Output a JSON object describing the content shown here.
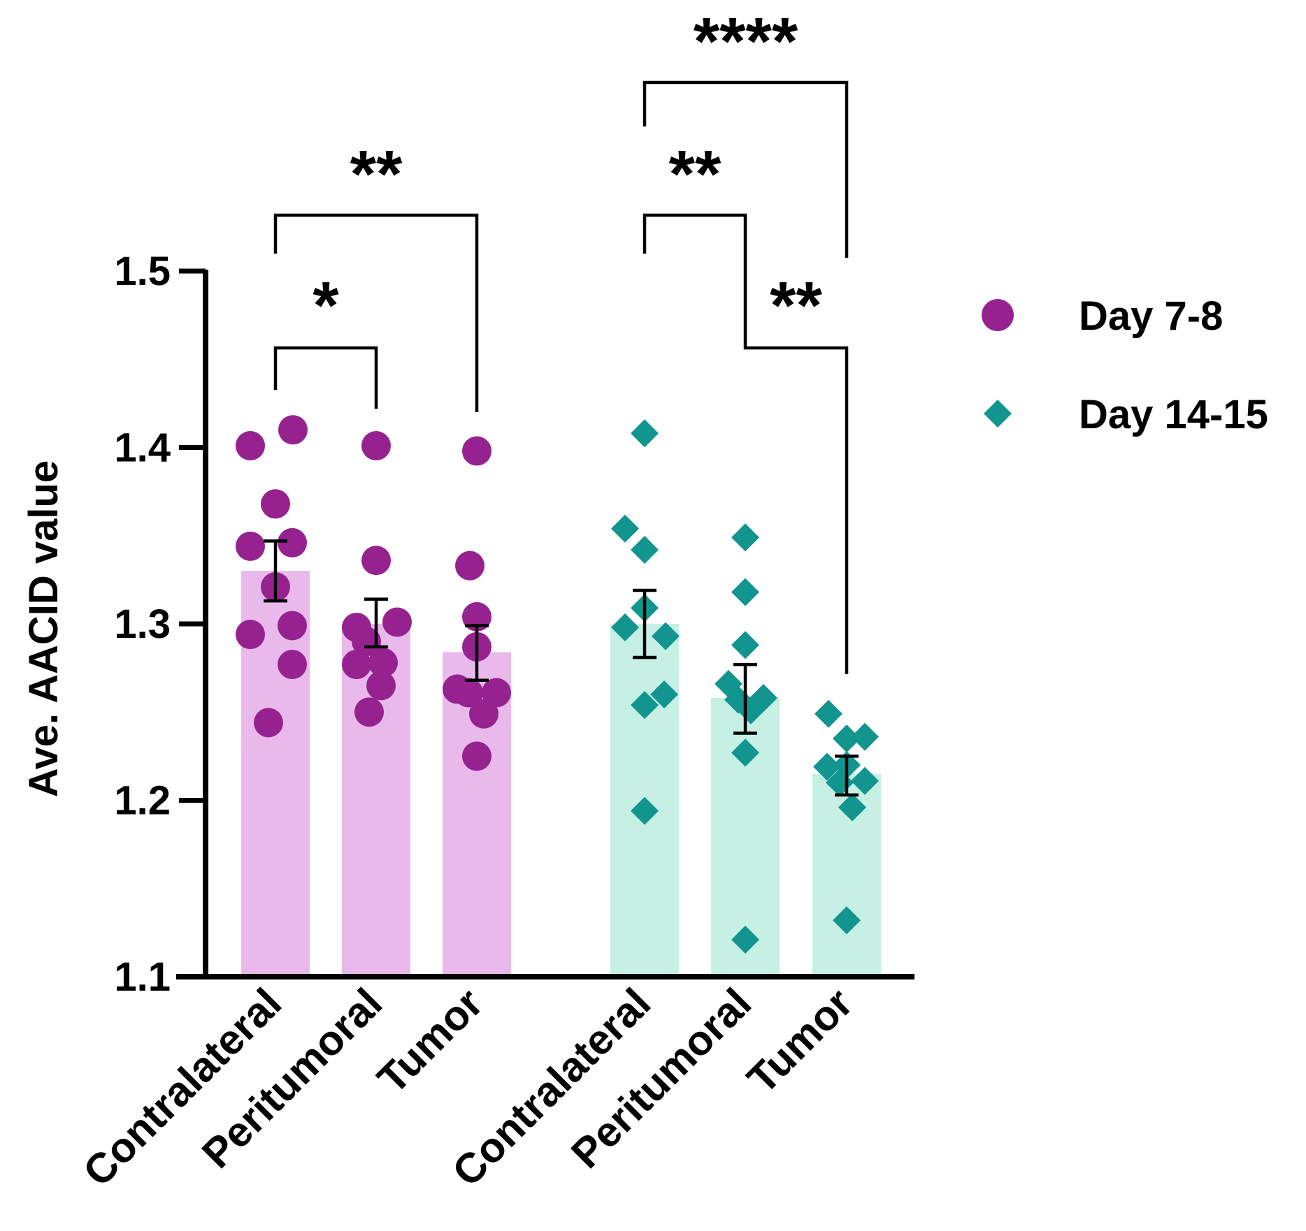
{
  "chart_data": {
    "type": "bar",
    "ylabel": "Ave. AACID value",
    "ylim": [
      1.1,
      1.5
    ],
    "yticks": [
      "1.1",
      "1.2",
      "1.3",
      "1.4",
      "1.5"
    ],
    "ytick_values": [
      1.1,
      1.2,
      1.3,
      1.4,
      1.5
    ],
    "legend_position": "right",
    "groups": [
      {
        "name": "Day 7-8",
        "marker": "circle",
        "bar_color": "#e8b9ea",
        "point_color": "#96228f",
        "categories": [
          {
            "label": "Contralateral",
            "mean": 1.33,
            "sem_low": 1.313,
            "sem_high": 1.347,
            "points": [
              1.401,
              1.41,
              1.368,
              1.344,
              1.346,
              1.321,
              1.299,
              1.294,
              1.277,
              1.244
            ]
          },
          {
            "label": "Peritumoral",
            "mean": 1.3,
            "sem_low": 1.287,
            "sem_high": 1.314,
            "points": [
              1.401,
              1.336,
              1.298,
              1.301,
              1.29,
              1.278,
              1.277,
              1.265,
              1.25
            ]
          },
          {
            "label": "Tumor",
            "mean": 1.284,
            "sem_low": 1.268,
            "sem_high": 1.299,
            "points": [
              1.398,
              1.333,
              1.304,
              1.287,
              1.263,
              1.261,
              1.261,
              1.249,
              1.225
            ]
          }
        ]
      },
      {
        "name": "Day 14-15",
        "marker": "diamond",
        "bar_color": "#c6f0e4",
        "point_color": "#12948f",
        "categories": [
          {
            "label": "Contralateral",
            "mean": 1.3,
            "sem_low": 1.281,
            "sem_high": 1.319,
            "points": [
              1.408,
              1.354,
              1.342,
              1.309,
              1.298,
              1.293,
              1.26,
              1.254,
              1.194
            ]
          },
          {
            "label": "Peritumoral",
            "mean": 1.258,
            "sem_low": 1.238,
            "sem_high": 1.277,
            "points": [
              1.349,
              1.318,
              1.288,
              1.266,
              1.258,
              1.257,
              1.251,
              1.227,
              1.121
            ]
          },
          {
            "label": "Tumor",
            "mean": 1.215,
            "sem_low": 1.203,
            "sem_high": 1.225,
            "points": [
              1.249,
              1.236,
              1.235,
              1.22,
              1.219,
              1.211,
              1.21,
              1.196,
              1.132
            ]
          }
        ]
      }
    ],
    "significance": [
      {
        "label": "*",
        "from": 0,
        "to": 1
      },
      {
        "label": "**",
        "from": 0,
        "to": 2
      },
      {
        "label": "**",
        "from": 3,
        "to": 4
      },
      {
        "label": "****",
        "from": 3,
        "to": 5
      },
      {
        "label": "**",
        "from": 4,
        "to": 5
      }
    ]
  }
}
